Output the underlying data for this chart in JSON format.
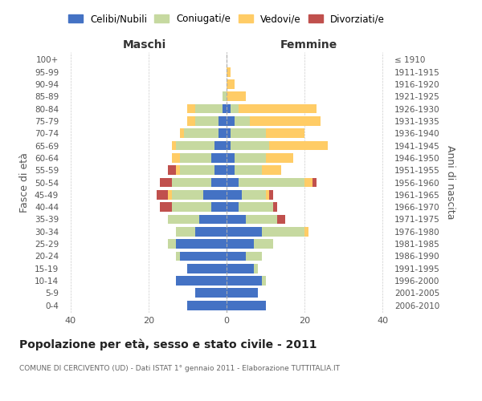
{
  "age_groups": [
    "0-4",
    "5-9",
    "10-14",
    "15-19",
    "20-24",
    "25-29",
    "30-34",
    "35-39",
    "40-44",
    "45-49",
    "50-54",
    "55-59",
    "60-64",
    "65-69",
    "70-74",
    "75-79",
    "80-84",
    "85-89",
    "90-94",
    "95-99",
    "100+"
  ],
  "birth_years": [
    "2006-2010",
    "2001-2005",
    "1996-2000",
    "1991-1995",
    "1986-1990",
    "1981-1985",
    "1976-1980",
    "1971-1975",
    "1966-1970",
    "1961-1965",
    "1956-1960",
    "1951-1955",
    "1946-1950",
    "1941-1945",
    "1936-1940",
    "1931-1935",
    "1926-1930",
    "1921-1925",
    "1916-1920",
    "1911-1915",
    "≤ 1910"
  ],
  "maschi": {
    "celibi": [
      10,
      8,
      13,
      10,
      12,
      13,
      8,
      7,
      4,
      6,
      4,
      3,
      4,
      3,
      2,
      2,
      1,
      0,
      0,
      0,
      0
    ],
    "coniugati": [
      0,
      0,
      0,
      0,
      1,
      2,
      5,
      8,
      10,
      8,
      10,
      9,
      8,
      10,
      9,
      6,
      7,
      1,
      0,
      0,
      0
    ],
    "vedovi": [
      0,
      0,
      0,
      0,
      0,
      0,
      0,
      0,
      0,
      1,
      0,
      1,
      2,
      1,
      1,
      2,
      2,
      0,
      0,
      0,
      0
    ],
    "divorziati": [
      0,
      0,
      0,
      0,
      0,
      0,
      0,
      0,
      3,
      3,
      3,
      2,
      0,
      0,
      0,
      0,
      0,
      0,
      0,
      0,
      0
    ]
  },
  "femmine": {
    "nubili": [
      10,
      8,
      9,
      7,
      5,
      7,
      9,
      5,
      3,
      4,
      3,
      2,
      2,
      1,
      1,
      2,
      1,
      0,
      0,
      0,
      0
    ],
    "coniugate": [
      0,
      0,
      1,
      1,
      4,
      5,
      11,
      8,
      9,
      6,
      17,
      7,
      8,
      10,
      9,
      4,
      2,
      0,
      0,
      0,
      0
    ],
    "vedove": [
      0,
      0,
      0,
      0,
      0,
      0,
      1,
      0,
      0,
      1,
      2,
      5,
      7,
      15,
      10,
      18,
      20,
      5,
      2,
      1,
      0
    ],
    "divorziate": [
      0,
      0,
      0,
      0,
      0,
      0,
      0,
      2,
      1,
      1,
      1,
      0,
      0,
      0,
      0,
      0,
      0,
      0,
      0,
      0,
      0
    ]
  },
  "colors": {
    "celibi_nubili": "#4472C4",
    "coniugati": "#C6D9A0",
    "vedovi": "#FFCC66",
    "divorziati": "#C0504D"
  },
  "title": "Popolazione per età, sesso e stato civile - 2011",
  "subtitle": "COMUNE DI CERCIVENTO (UD) - Dati ISTAT 1° gennaio 2011 - Elaborazione TUTTITALIA.IT",
  "xlabel_left": "Maschi",
  "xlabel_right": "Femmine",
  "ylabel_left": "Fasce di età",
  "ylabel_right": "Anni di nascita",
  "xlim": 42,
  "legend_labels": [
    "Celibi/Nubili",
    "Coniugati/e",
    "Vedovi/e",
    "Divorziati/e"
  ]
}
